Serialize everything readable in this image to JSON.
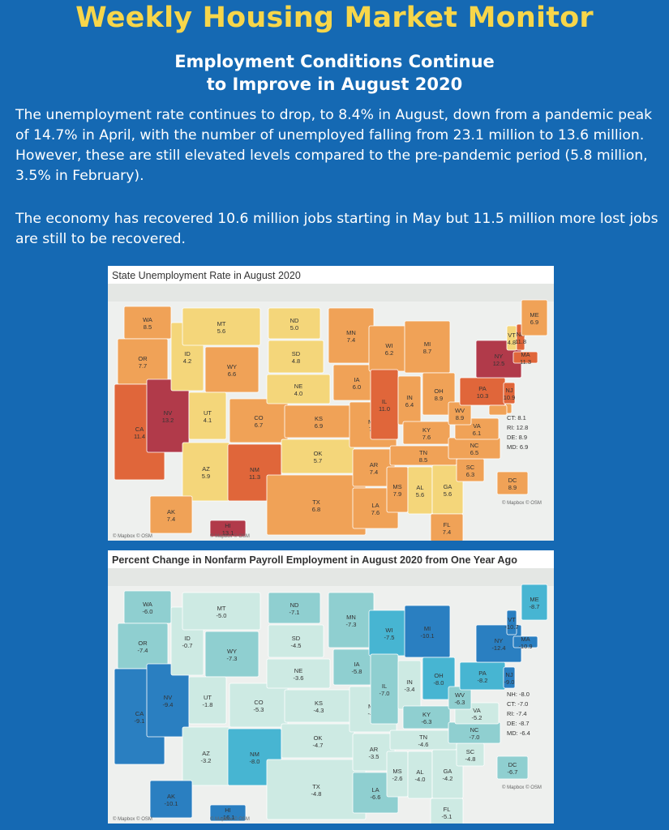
{
  "header": {
    "title": "Weekly Housing Market Monitor",
    "subtitle_line1": "Employment Conditions Continue",
    "subtitle_line2": "to Improve in August 2020"
  },
  "body": {
    "paragraph1": "The unemployment rate continues to drop, to 8.4% in August, down from a pandemic peak of 14.7% in April, with the number of unemployed falling from 23.1 million to 13.6 million. However, these are still elevated levels compared to the pre-pandemic period (5.8 million, 3.5% in February).",
    "paragraph2": "The economy has recovered 10.6 million jobs starting in May but 11.5 million more lost jobs are still to be recovered."
  },
  "map_unemployment": {
    "title": "State Unemployment Rate in August 2020",
    "watermarks": [
      "© Mapbox © OSM",
      "© Mapbox © OSM",
      "© Mapbox © OSM"
    ],
    "side_note": [
      "CT: 8.1",
      "RI: 12.8",
      "DE: 8.9",
      "MD: 6.9"
    ],
    "states": [
      {
        "code": "WA",
        "value": "8.5"
      },
      {
        "code": "OR",
        "value": "7.7"
      },
      {
        "code": "CA",
        "value": "11.4"
      },
      {
        "code": "NV",
        "value": "13.2"
      },
      {
        "code": "ID",
        "value": "4.2"
      },
      {
        "code": "MT",
        "value": "5.6"
      },
      {
        "code": "WY",
        "value": "6.6"
      },
      {
        "code": "UT",
        "value": "4.1"
      },
      {
        "code": "AZ",
        "value": "5.9"
      },
      {
        "code": "CO",
        "value": "6.7"
      },
      {
        "code": "NM",
        "value": "11.3"
      },
      {
        "code": "ND",
        "value": "5.0"
      },
      {
        "code": "SD",
        "value": "4.8"
      },
      {
        "code": "NE",
        "value": "4.0"
      },
      {
        "code": "KS",
        "value": "6.9"
      },
      {
        "code": "OK",
        "value": "5.7"
      },
      {
        "code": "TX",
        "value": "6.8"
      },
      {
        "code": "MN",
        "value": "7.4"
      },
      {
        "code": "IA",
        "value": "6.0"
      },
      {
        "code": "MO",
        "value": "7.0"
      },
      {
        "code": "AR",
        "value": "7.4"
      },
      {
        "code": "LA",
        "value": "7.6"
      },
      {
        "code": "WI",
        "value": "6.2"
      },
      {
        "code": "IL",
        "value": "11.0"
      },
      {
        "code": "MI",
        "value": "8.7"
      },
      {
        "code": "IN",
        "value": "6.4"
      },
      {
        "code": "OH",
        "value": "8.9"
      },
      {
        "code": "KY",
        "value": "7.6"
      },
      {
        "code": "TN",
        "value": "8.5"
      },
      {
        "code": "MS",
        "value": "7.9"
      },
      {
        "code": "AL",
        "value": "5.6"
      },
      {
        "code": "GA",
        "value": "5.6"
      },
      {
        "code": "FL",
        "value": "7.4"
      },
      {
        "code": "SC",
        "value": "6.3"
      },
      {
        "code": "NC",
        "value": "6.5"
      },
      {
        "code": "VA",
        "value": "6.1"
      },
      {
        "code": "WV",
        "value": "8.9"
      },
      {
        "code": "PA",
        "value": "10.3"
      },
      {
        "code": "NY",
        "value": "12.5"
      },
      {
        "code": "NJ",
        "value": "10.9"
      },
      {
        "code": "VT",
        "value": "4.8"
      },
      {
        "code": "NH",
        "value": "11.8"
      },
      {
        "code": "MA",
        "value": "11.3"
      },
      {
        "code": "ME",
        "value": "6.9"
      },
      {
        "code": "DE",
        "value": "8.9"
      },
      {
        "code": "MD",
        "value": "6.9"
      },
      {
        "code": "DC",
        "value": "8.9"
      },
      {
        "code": "AK",
        "value": "7.4"
      },
      {
        "code": "HI",
        "value": "13.1"
      }
    ],
    "colors": {
      "low": "#f4d67a",
      "mid": "#f0a257",
      "high": "#e0663a",
      "max": "#b13a4a"
    }
  },
  "map_payroll": {
    "title": "Percent Change in Nonfarm Payroll Employment in August 2020 from One Year Ago",
    "watermarks": [
      "© Mapbox © OSM",
      "© Mapbox © OSM",
      "© Mapbox © OSM"
    ],
    "side_note": [
      "NH: -8.0",
      "CT: -7.0",
      "RI: -7.4",
      "DE: -8.7",
      "MD: -6.4"
    ],
    "states": [
      {
        "code": "WA",
        "value": "-6.0"
      },
      {
        "code": "OR",
        "value": "-7.4"
      },
      {
        "code": "CA",
        "value": "-9.1"
      },
      {
        "code": "NV",
        "value": "-9.4"
      },
      {
        "code": "ID",
        "value": "-0.7"
      },
      {
        "code": "MT",
        "value": "-5.0"
      },
      {
        "code": "WY",
        "value": "-7.3"
      },
      {
        "code": "UT",
        "value": "-1.8"
      },
      {
        "code": "AZ",
        "value": "-3.2"
      },
      {
        "code": "CO",
        "value": "-5.3"
      },
      {
        "code": "NM",
        "value": "-8.0"
      },
      {
        "code": "ND",
        "value": "-7.1"
      },
      {
        "code": "SD",
        "value": "-4.5"
      },
      {
        "code": "NE",
        "value": "-3.6"
      },
      {
        "code": "KS",
        "value": "-4.3"
      },
      {
        "code": "OK",
        "value": "-4.7"
      },
      {
        "code": "TX",
        "value": "-4.8"
      },
      {
        "code": "MN",
        "value": "-7.3"
      },
      {
        "code": "IA",
        "value": "-5.8"
      },
      {
        "code": "MO",
        "value": "-4.7"
      },
      {
        "code": "AR",
        "value": "-3.5"
      },
      {
        "code": "LA",
        "value": "-6.6"
      },
      {
        "code": "WI",
        "value": "-7.5"
      },
      {
        "code": "IL",
        "value": "-7.0"
      },
      {
        "code": "MI",
        "value": "-10.1"
      },
      {
        "code": "IN",
        "value": "-3.4"
      },
      {
        "code": "OH",
        "value": "-8.0"
      },
      {
        "code": "KY",
        "value": "-6.3"
      },
      {
        "code": "TN",
        "value": "-4.6"
      },
      {
        "code": "MS",
        "value": "-2.6"
      },
      {
        "code": "AL",
        "value": "-4.0"
      },
      {
        "code": "GA",
        "value": "-4.2"
      },
      {
        "code": "FL",
        "value": "-5.1"
      },
      {
        "code": "SC",
        "value": "-4.8"
      },
      {
        "code": "NC",
        "value": "-7.0"
      },
      {
        "code": "VA",
        "value": "-5.2"
      },
      {
        "code": "WV",
        "value": "-6.3"
      },
      {
        "code": "PA",
        "value": "-8.2"
      },
      {
        "code": "NY",
        "value": "-12.4"
      },
      {
        "code": "NJ",
        "value": "-9.0"
      },
      {
        "code": "VT",
        "value": "-10.7"
      },
      {
        "code": "MA",
        "value": "-10.9"
      },
      {
        "code": "ME",
        "value": "-8.7"
      },
      {
        "code": "DC",
        "value": "-6.7"
      },
      {
        "code": "AK",
        "value": "-10.1"
      },
      {
        "code": "HI",
        "value": "-16.1"
      }
    ],
    "colors": {
      "low": "#cdeae3",
      "mid": "#8fcfd0",
      "high": "#47b5d2",
      "max": "#2a7fc1"
    }
  }
}
